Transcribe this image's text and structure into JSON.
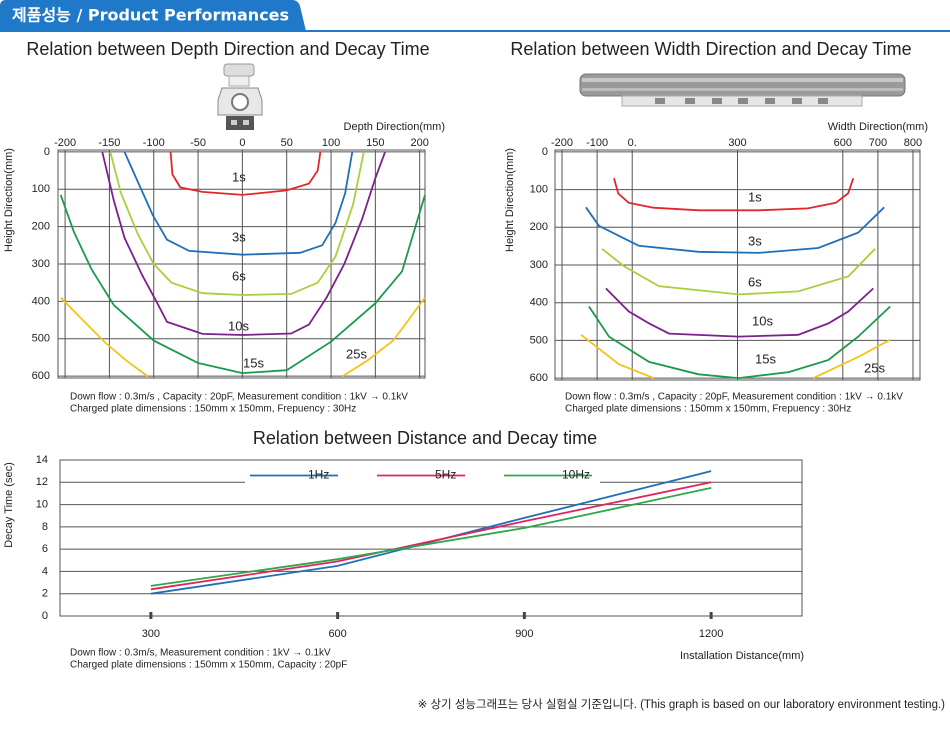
{
  "header": {
    "title": "제품성능 / Product Performances"
  },
  "chart_data": [
    {
      "type": "line",
      "title": "Relation between Depth Direction and Decay Time",
      "x_label": "Depth Direction(mm)",
      "y_label": "Height Direction(mm)",
      "xlim": [
        -208,
        206
      ],
      "ylim": [
        -5,
        605
      ],
      "y_axis_inverted": true,
      "xticks": [
        -200,
        -150,
        -100,
        -50,
        0,
        50,
        100,
        150,
        200
      ],
      "yticks": [
        0,
        100,
        200,
        300,
        400,
        500,
        600
      ],
      "grid": "both",
      "legend": "inline",
      "series": [
        {
          "name": "1s",
          "color": "#e3262a",
          "x": [
            -81,
            -79,
            -70,
            -45,
            0,
            50,
            75,
            85,
            88
          ],
          "values": [
            0,
            60,
            95,
            107,
            115,
            103,
            85,
            50,
            0
          ]
        },
        {
          "name": "3s",
          "color": "#1f6fba",
          "x": [
            -133,
            -118,
            -101,
            -85,
            -60,
            0,
            65,
            90,
            105,
            116,
            124
          ],
          "values": [
            0,
            80,
            170,
            235,
            265,
            275,
            270,
            250,
            190,
            110,
            0
          ]
        },
        {
          "name": "6s",
          "color": "#a8cf3c",
          "x": [
            -149,
            -137,
            -118,
            -100,
            -80,
            -45,
            0,
            55,
            85,
            105,
            125,
            137
          ],
          "values": [
            0,
            110,
            220,
            300,
            350,
            378,
            383,
            380,
            350,
            280,
            140,
            0
          ]
        },
        {
          "name": "10s",
          "color": "#7d1f8c",
          "x": [
            -158,
            -145,
            -133,
            -113,
            -97,
            -85,
            -45,
            0,
            55,
            75,
            95,
            115,
            135,
            150,
            161
          ],
          "values": [
            0,
            130,
            230,
            330,
            400,
            455,
            487,
            490,
            486,
            462,
            390,
            300,
            180,
            70,
            0
          ]
        },
        {
          "name": "15s",
          "color": "#1a9a4a",
          "x": [
            -205,
            -190,
            -170,
            -145,
            -100,
            -50,
            0,
            50,
            100,
            150,
            180,
            206
          ],
          "values": [
            115,
            215,
            315,
            410,
            505,
            565,
            592,
            584,
            508,
            405,
            320,
            115
          ]
        },
        {
          "name": "25s",
          "color": "#f5c21b",
          "x": [
            -205,
            -180,
            -155,
            -130,
            -107,
            null,
            113,
            140,
            170,
            206
          ],
          "values": [
            390,
            450,
            510,
            560,
            600,
            null,
            600,
            560,
            505,
            390
          ]
        }
      ],
      "notes": [
        "Down flow : 0.3m/s , Capacity : 20pF, Measurement condition : 1kV → 0.1kV",
        "Charged plate dimensions : 150mm x 150mm, Frepuency : 30Hz"
      ]
    },
    {
      "type": "line",
      "title": "Relation between Width Direction and Decay Time",
      "x_label": "Width Direction(mm)",
      "y_label": "Height Direction(mm)",
      "xlim": [
        -220,
        820
      ],
      "ylim": [
        -5,
        605
      ],
      "y_axis_inverted": true,
      "xticks": [
        -200,
        -100,
        {
          "value": 0,
          "label": "0."
        },
        300,
        600,
        700,
        800
      ],
      "yticks": [
        0,
        100,
        200,
        300,
        400,
        500,
        600
      ],
      "grid": "both",
      "legend": "inline",
      "series": [
        {
          "name": "1s",
          "color": "#e3262a",
          "x": [
            -52,
            -40,
            -10,
            60,
            190,
            360,
            500,
            580,
            615,
            630
          ],
          "values": [
            70,
            110,
            135,
            148,
            155,
            155,
            150,
            135,
            110,
            70
          ]
        },
        {
          "name": "3s",
          "color": "#1f6fba",
          "x": [
            -132,
            -95,
            19,
            189,
            360,
            530,
            644,
            718
          ],
          "values": [
            147,
            196,
            249,
            265,
            268,
            255,
            214,
            147
          ]
        },
        {
          "name": "6s",
          "color": "#a8cf3c",
          "x": [
            -86,
            -24,
            76,
            303,
            473,
            616,
            692
          ],
          "values": [
            257,
            303,
            356,
            378,
            370,
            330,
            257
          ]
        },
        {
          "name": "10s",
          "color": "#7d1f8c",
          "x": [
            -75,
            -10,
            48,
            105,
            303,
            473,
            559,
            616,
            687
          ],
          "values": [
            362,
            423,
            455,
            482,
            490,
            485,
            455,
            423,
            362
          ]
        },
        {
          "name": "15s",
          "color": "#1a9a4a",
          "x": [
            -123,
            -66,
            48,
            189,
            303,
            446,
            559,
            644,
            735
          ],
          "values": [
            410,
            490,
            557,
            590,
            600,
            584,
            552,
            490,
            410
          ]
        },
        {
          "name": "25s",
          "color": "#f5c21b",
          "x": [
            -146,
            -38,
            61,
            null,
            516,
            644,
            735
          ],
          "values": [
            485,
            563,
            600,
            null,
            600,
            544,
            498
          ]
        }
      ],
      "notes": [
        "Down flow : 0.3m/s , Capacity : 20pF, Measurement condition : 1kV → 0.1kV",
        "Charged plate dimensions : 150mm x 150mm, Frepuency : 30Hz"
      ]
    },
    {
      "type": "line",
      "title": "Relation between Distance and Decay time",
      "x_label": "Installation Distance(mm)",
      "y_label": "Decay Time (sec)",
      "xlim": [
        154,
        1346
      ],
      "ylim": [
        0,
        14
      ],
      "xticks": [
        300,
        600,
        900,
        1200
      ],
      "yticks": [
        0,
        2,
        4,
        6,
        8,
        10,
        12,
        14
      ],
      "grid": "y",
      "legend": "top",
      "series": [
        {
          "name": "1Hz",
          "color": "#1f6fba",
          "x": [
            300,
            600,
            900,
            1200
          ],
          "values": [
            2.0,
            4.5,
            8.8,
            13.0
          ]
        },
        {
          "name": "5Hz",
          "color": "#e0245e",
          "x": [
            300,
            600,
            900,
            1200
          ],
          "values": [
            2.4,
            4.9,
            8.5,
            12.0
          ]
        },
        {
          "name": "10Hz",
          "color": "#2aa84a",
          "x": [
            300,
            600,
            900,
            1200
          ],
          "values": [
            2.7,
            5.1,
            7.9,
            11.5
          ]
        }
      ],
      "notes": [
        "Down flow : 0.3m/s, Measurement condition : 1kV → 0.1kV",
        "Charged plate dimensions : 150mm x 150mm, Capacity : 20pF"
      ]
    }
  ],
  "footnote": "※ 상기 성능그래프는 당사 실험실 기준입니다. (This graph is based on our laboratory environment testing.)"
}
